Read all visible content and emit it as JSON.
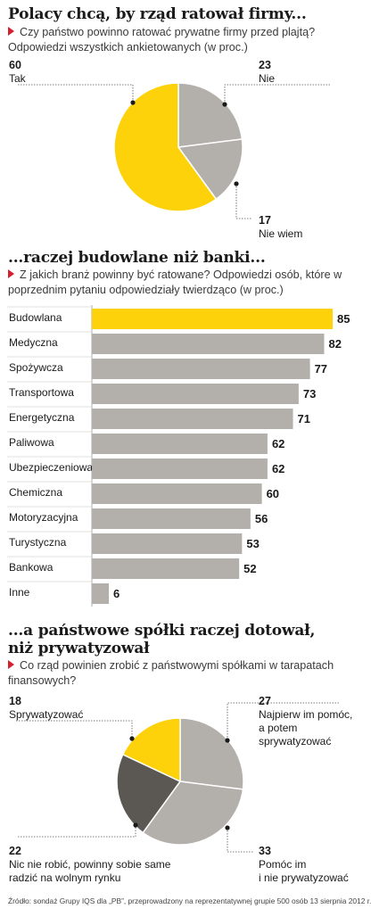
{
  "sections": {
    "s1": {
      "title": "Polacy chcą, by rząd ratował firmy...",
      "subtitle": "Czy państwo powinno ratować prywatne firmy przed plajtą? Odpowiedzi wszystkich ankietowanych (w proc.)"
    },
    "s2": {
      "title": "...raczej budowlane niż banki...",
      "subtitle": "Z jakich branż powinny być ratowane? Odpowiedzi osób, które w poprzednim pytaniu odpowiedziały twierdząco (w proc.)"
    },
    "s3": {
      "title_line1": "...a państwowe spółki raczej dotował,",
      "title_line2": "niż prywatyzował",
      "subtitle": "Co rząd powinien zrobić z państwowymi spółkami w tarapatach finansowych?"
    }
  },
  "chart_data": [
    {
      "type": "pie",
      "slices": [
        {
          "label": "Tak",
          "value": 60,
          "color": "#fdd20a"
        },
        {
          "label": "Nie",
          "value": 23,
          "color": "#b3afaa"
        },
        {
          "label": "Nie wiem",
          "value": 17,
          "color": "#b3afaa"
        }
      ]
    },
    {
      "type": "bar",
      "orientation": "horizontal",
      "categories": [
        "Budowlana",
        "Medyczna",
        "Spożywcza",
        "Transportowa",
        "Energetyczna",
        "Paliwowa",
        "Ubezpieczeniowa",
        "Chemiczna",
        "Motoryzacyjna",
        "Turystyczna",
        "Bankowa",
        "Inne"
      ],
      "values": [
        85,
        82,
        77,
        73,
        71,
        62,
        62,
        60,
        56,
        53,
        52,
        6
      ],
      "highlight_color": "#fdd20a",
      "bar_color": "#b3afaa"
    },
    {
      "type": "pie",
      "slices": [
        {
          "label": "Najpierw im pomóc, a potem sprywatyzować",
          "value": 27,
          "color": "#b3afaa"
        },
        {
          "label": "Pomóc im i nie prywatyzować",
          "value": 33,
          "color": "#b3afaa"
        },
        {
          "label": "Nic nie robić, powinny sobie same radzić na wolnym rynku",
          "value": 22,
          "color": "#5b5753"
        },
        {
          "label": "Sprywatyzować",
          "value": 18,
          "color": "#fdd20a"
        }
      ]
    }
  ],
  "pie1_labels": {
    "tak": {
      "num": "60",
      "text": "Tak"
    },
    "nie": {
      "num": "23",
      "text": "Nie"
    },
    "niewiem": {
      "num": "17",
      "text": "Nie wiem"
    }
  },
  "pie3_labels": {
    "spr": {
      "num": "18",
      "text": "Sprywatyzować"
    },
    "najp": {
      "num": "27",
      "line1": "Najpierw im pomóc,",
      "line2": "a potem",
      "line3": "sprywatyzować"
    },
    "nic": {
      "num": "22",
      "line1": "Nic nie robić, powinny sobie same",
      "line2": "radzić na wolnym rynku"
    },
    "pomoc": {
      "num": "33",
      "line1": "Pomóc im",
      "line2": "i nie prywatyzować"
    }
  },
  "source": "Źródło: sondaż Grupy IQS dla „PB”, przeprowadzony na reprezentatywnej grupie 500 osób 13 sierpnia 2012 r."
}
